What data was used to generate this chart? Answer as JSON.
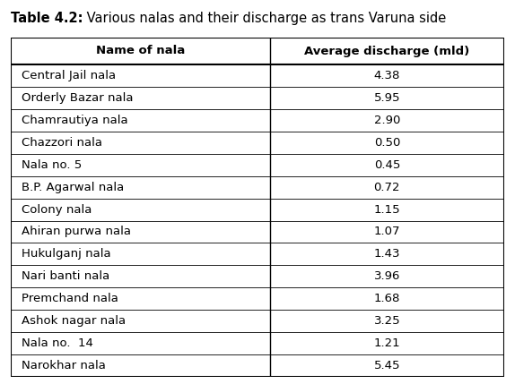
{
  "title_bold": "Table 4.2:",
  "title_normal": " Various nalas and their discharge as trans Varuna side",
  "col1_header": "Name of nala",
  "col2_header": "Average discharge (mld)",
  "rows": [
    [
      "Central Jail nala",
      "4.38"
    ],
    [
      "Orderly Bazar nala",
      "5.95"
    ],
    [
      "Chamrautiya nala",
      "2.90"
    ],
    [
      "Chazzori nala",
      "0.50"
    ],
    [
      "Nala no. 5",
      "0.45"
    ],
    [
      "B.P. Agarwal nala",
      "0.72"
    ],
    [
      "Colony nala",
      "1.15"
    ],
    [
      "Ahiran purwa nala",
      "1.07"
    ],
    [
      "Hukulganj nala",
      "1.43"
    ],
    [
      "Nari banti nala",
      "3.96"
    ],
    [
      "Premchand nala",
      "1.68"
    ],
    [
      "Ashok nagar nala",
      "3.25"
    ],
    [
      "Nala no.  14",
      "1.21"
    ],
    [
      "Narokhar nala",
      "5.45"
    ]
  ],
  "bg_color": "#ffffff",
  "border_color": "#000000",
  "text_color": "#000000",
  "title_fontsize": 10.5,
  "header_fontsize": 9.5,
  "cell_fontsize": 9.5,
  "fig_width": 5.74,
  "fig_height": 4.29,
  "dpi": 100
}
